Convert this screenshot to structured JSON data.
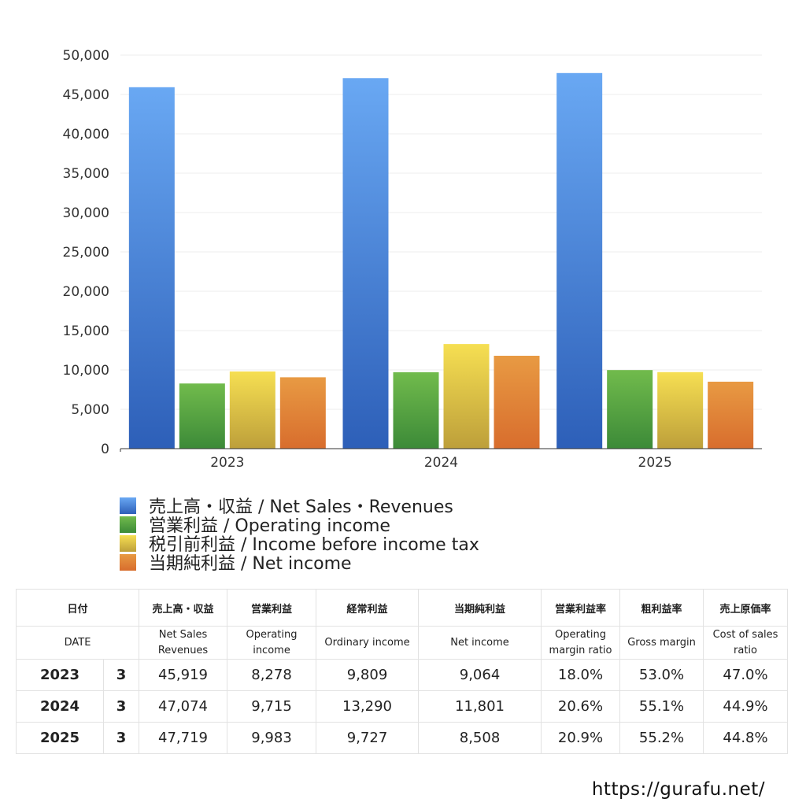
{
  "chart_data": {
    "type": "bar",
    "categories": [
      "2023",
      "2024",
      "2025"
    ],
    "series": [
      {
        "name": "売上高・収益 / Net Sales・Revenues",
        "values": [
          45919,
          47074,
          47719
        ],
        "color_top": "#69a8f3",
        "color_bottom": "#2d5fb8"
      },
      {
        "name": "営業利益 / Operating income",
        "values": [
          8278,
          9715,
          9983
        ],
        "color_top": "#71bb4c",
        "color_bottom": "#3c8a38"
      },
      {
        "name": "税引前利益 / Income before income tax",
        "values": [
          9809,
          13290,
          9727
        ],
        "color_top": "#f6df52",
        "color_bottom": "#bd9f3a"
      },
      {
        "name": "当期純利益 / Net income",
        "values": [
          9064,
          11801,
          8508
        ],
        "color_top": "#e89a43",
        "color_bottom": "#d86d2d"
      }
    ],
    "y_ticks": [
      "0",
      "5,000",
      "10,000",
      "15,000",
      "20,000",
      "25,000",
      "30,000",
      "35,000",
      "40,000",
      "45,000",
      "50,000"
    ],
    "ylim": [
      0,
      50000
    ],
    "grid": true,
    "legend_position": "bottom-left"
  },
  "table": {
    "headers_jp": [
      "日付",
      "売上高・収益",
      "営業利益",
      "経常利益",
      "当期純利益",
      "営業利益率",
      "粗利益率",
      "売上原価率"
    ],
    "headers_en": [
      "DATE",
      "Net Sales\nRevenues",
      "Operating\nincome",
      "Ordinary income",
      "Net income",
      "Operating\nmargin ratio",
      "Gross margin",
      "Cost of sales\nratio"
    ],
    "rows": [
      {
        "year": "2023",
        "month": "3",
        "net_sales": "45,919",
        "operating_income": "8,278",
        "ordinary_income": "9,809",
        "net_income": "9,064",
        "operating_margin": "18.0%",
        "gross_margin": "53.0%",
        "cost_ratio": "47.0%"
      },
      {
        "year": "2024",
        "month": "3",
        "net_sales": "47,074",
        "operating_income": "9,715",
        "ordinary_income": "13,290",
        "net_income": "11,801",
        "operating_margin": "20.6%",
        "gross_margin": "55.1%",
        "cost_ratio": "44.9%"
      },
      {
        "year": "2025",
        "month": "3",
        "net_sales": "47,719",
        "operating_income": "9,983",
        "ordinary_income": "9,727",
        "net_income": "8,508",
        "operating_margin": "20.9%",
        "gross_margin": "55.2%",
        "cost_ratio": "44.8%"
      }
    ]
  },
  "footer": {
    "url": "https://gurafu.net/"
  }
}
